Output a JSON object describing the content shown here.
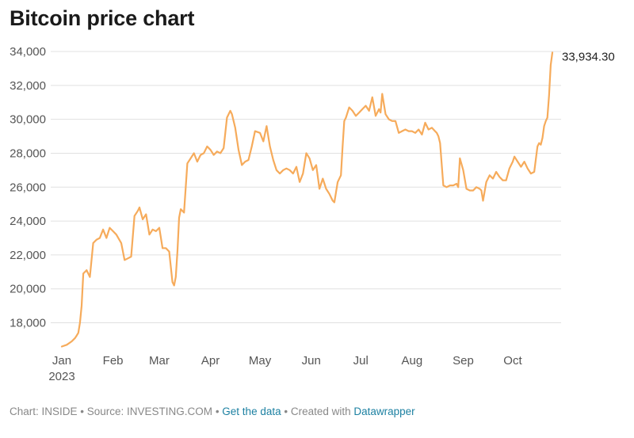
{
  "title": "Bitcoin price chart",
  "footer": {
    "chart_by": "Chart: INSIDE",
    "sep1": " • ",
    "source": "Source: INVESTING.COM",
    "sep2": " • ",
    "get_data": "Get the data",
    "sep3": " • ",
    "created_with": "Created with ",
    "datawrapper": "Datawrapper"
  },
  "colors": {
    "line": "#f6ab5b",
    "grid": "#e0e0e0"
  },
  "chart_data": {
    "type": "line",
    "title": "Bitcoin price chart",
    "xlabel": "",
    "ylabel": "",
    "ylim": [
      16500,
      34500
    ],
    "yticks": [
      18000,
      20000,
      22000,
      24000,
      26000,
      28000,
      30000,
      32000,
      34000
    ],
    "ytick_labels": [
      "18,000",
      "20,000",
      "22,000",
      "24,000",
      "26,000",
      "28,000",
      "30,000",
      "32,000",
      "34,000"
    ],
    "xlim": [
      "2023-01-01",
      "2023-10-25"
    ],
    "xticks": [
      "2023-01-01",
      "2023-02-01",
      "2023-03-01",
      "2023-04-01",
      "2023-05-01",
      "2023-06-01",
      "2023-07-01",
      "2023-08-01",
      "2023-09-01",
      "2023-10-01"
    ],
    "xtick_labels": [
      "Jan",
      "Feb",
      "Mar",
      "Apr",
      "May",
      "Jun",
      "Jul",
      "Aug",
      "Sep",
      "Oct"
    ],
    "xtick_year": "2023",
    "grid": true,
    "end_label": "33,934.30",
    "series": [
      {
        "x": [
          "2023-01-01",
          "2023-01-04",
          "2023-01-07",
          "2023-01-09",
          "2023-01-10",
          "2023-01-11",
          "2023-01-12",
          "2023-01-13",
          "2023-01-14",
          "2023-01-16",
          "2023-01-18",
          "2023-01-20",
          "2023-01-22",
          "2023-01-24",
          "2023-01-26",
          "2023-01-28",
          "2023-01-30",
          "2023-02-01",
          "2023-02-03",
          "2023-02-06",
          "2023-02-08",
          "2023-02-10",
          "2023-02-12",
          "2023-02-14",
          "2023-02-16",
          "2023-02-17",
          "2023-02-19",
          "2023-02-21",
          "2023-02-23",
          "2023-02-25",
          "2023-02-27",
          "2023-03-01",
          "2023-03-03",
          "2023-03-05",
          "2023-03-07",
          "2023-03-09",
          "2023-03-10",
          "2023-03-11",
          "2023-03-12",
          "2023-03-13",
          "2023-03-14",
          "2023-03-16",
          "2023-03-18",
          "2023-03-20",
          "2023-03-22",
          "2023-03-24",
          "2023-03-26",
          "2023-03-28",
          "2023-03-30",
          "2023-04-01",
          "2023-04-03",
          "2023-04-05",
          "2023-04-07",
          "2023-04-09",
          "2023-04-11",
          "2023-04-13",
          "2023-04-14",
          "2023-04-16",
          "2023-04-18",
          "2023-04-20",
          "2023-04-22",
          "2023-04-24",
          "2023-04-26",
          "2023-04-28",
          "2023-05-01",
          "2023-05-03",
          "2023-05-05",
          "2023-05-07",
          "2023-05-09",
          "2023-05-11",
          "2023-05-13",
          "2023-05-15",
          "2023-05-17",
          "2023-05-19",
          "2023-05-21",
          "2023-05-23",
          "2023-05-25",
          "2023-05-27",
          "2023-05-29",
          "2023-05-31",
          "2023-06-02",
          "2023-06-04",
          "2023-06-06",
          "2023-06-08",
          "2023-06-10",
          "2023-06-12",
          "2023-06-14",
          "2023-06-15",
          "2023-06-17",
          "2023-06-19",
          "2023-06-20",
          "2023-06-21",
          "2023-06-22",
          "2023-06-24",
          "2023-06-26",
          "2023-06-28",
          "2023-06-30",
          "2023-07-02",
          "2023-07-04",
          "2023-07-06",
          "2023-07-08",
          "2023-07-10",
          "2023-07-12",
          "2023-07-13",
          "2023-07-14",
          "2023-07-16",
          "2023-07-18",
          "2023-07-20",
          "2023-07-22",
          "2023-07-24",
          "2023-07-26",
          "2023-07-28",
          "2023-07-30",
          "2023-08-01",
          "2023-08-03",
          "2023-08-05",
          "2023-08-07",
          "2023-08-09",
          "2023-08-11",
          "2023-08-13",
          "2023-08-15",
          "2023-08-16",
          "2023-08-17",
          "2023-08-18",
          "2023-08-20",
          "2023-08-22",
          "2023-08-24",
          "2023-08-26",
          "2023-08-28",
          "2023-08-29",
          "2023-08-30",
          "2023-09-01",
          "2023-09-03",
          "2023-09-05",
          "2023-09-07",
          "2023-09-09",
          "2023-09-11",
          "2023-09-12",
          "2023-09-13",
          "2023-09-15",
          "2023-09-17",
          "2023-09-19",
          "2023-09-21",
          "2023-09-23",
          "2023-09-25",
          "2023-09-27",
          "2023-09-29",
          "2023-10-01",
          "2023-10-02",
          "2023-10-04",
          "2023-10-06",
          "2023-10-08",
          "2023-10-10",
          "2023-10-12",
          "2023-10-14",
          "2023-10-16",
          "2023-10-17",
          "2023-10-18",
          "2023-10-19",
          "2023-10-20",
          "2023-10-21",
          "2023-10-22",
          "2023-10-23",
          "2023-10-24",
          "2023-10-25"
        ],
        "values": [
          16600,
          16700,
          16900,
          17100,
          17250,
          17400,
          18000,
          19000,
          20900,
          21100,
          20700,
          22700,
          22900,
          23000,
          23500,
          23000,
          23600,
          23400,
          23200,
          22700,
          21700,
          21800,
          21900,
          24300,
          24600,
          24800,
          24100,
          24400,
          23200,
          23500,
          23400,
          23600,
          22400,
          22400,
          22200,
          20400,
          20200,
          20700,
          22200,
          24200,
          24700,
          24500,
          27400,
          27700,
          28000,
          27500,
          27900,
          28000,
          28400,
          28200,
          27900,
          28100,
          28000,
          28300,
          30100,
          30500,
          30300,
          29500,
          28200,
          27300,
          27500,
          27600,
          28400,
          29300,
          29200,
          28700,
          29600,
          28400,
          27600,
          27000,
          26800,
          27000,
          27100,
          27000,
          26800,
          27200,
          26300,
          26800,
          28000,
          27700,
          27000,
          27300,
          25900,
          26500,
          25900,
          25600,
          25200,
          25100,
          26300,
          26700,
          28400,
          29900,
          30100,
          30700,
          30500,
          30200,
          30400,
          30600,
          30800,
          30500,
          31300,
          30200,
          30600,
          30400,
          31500,
          30300,
          30000,
          29900,
          29900,
          29200,
          29300,
          29400,
          29300,
          29300,
          29200,
          29400,
          29100,
          29800,
          29400,
          29500,
          29300,
          29200,
          29000,
          28600,
          26100,
          26000,
          26100,
          26100,
          26200,
          26000,
          27700,
          27000,
          25900,
          25800,
          25800,
          26000,
          25900,
          25800,
          25200,
          26300,
          26700,
          26500,
          26900,
          26600,
          26400,
          26400,
          27100,
          27500,
          27800,
          27500,
          27200,
          27500,
          27100,
          26800,
          26900,
          28400,
          28600,
          28500,
          28900,
          29600,
          29900,
          30100,
          31400,
          33200,
          33934.3
        ]
      }
    ]
  }
}
